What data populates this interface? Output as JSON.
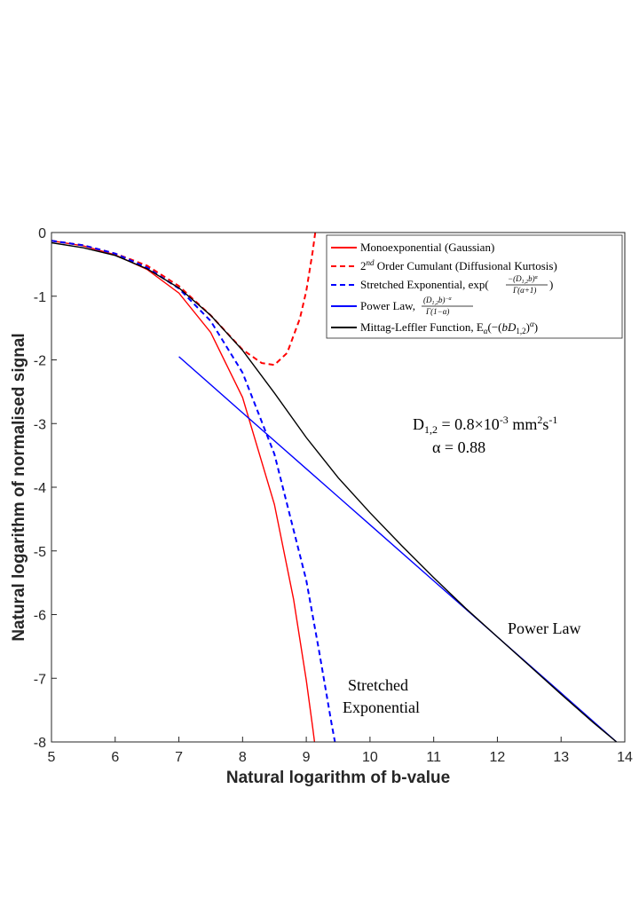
{
  "chart_data": {
    "type": "line",
    "xlabel": "Natural logarithm of b-value",
    "ylabel": "Natural logarithm of normalised signal",
    "xlim": [
      5,
      14
    ],
    "ylim": [
      -8,
      0
    ],
    "xticks": [
      5,
      6,
      7,
      8,
      9,
      10,
      11,
      12,
      13,
      14
    ],
    "yticks": [
      0,
      -1,
      -2,
      -3,
      -4,
      -5,
      -6,
      -7,
      -8
    ],
    "grid": false,
    "legend_position": "top-right",
    "series": [
      {
        "name": "Monoexponential (Gaussian)",
        "color": "#ff0000",
        "style": "solid",
        "points": [
          [
            5,
            -0.13
          ],
          [
            5.5,
            -0.21
          ],
          [
            6,
            -0.35
          ],
          [
            6.5,
            -0.58
          ],
          [
            7,
            -0.95
          ],
          [
            7.5,
            -1.57
          ],
          [
            8,
            -2.59
          ],
          [
            8.5,
            -4.27
          ],
          [
            8.8,
            -5.76
          ],
          [
            9.0,
            -7.03
          ],
          [
            9.1,
            -7.77
          ],
          [
            9.13,
            -8.0
          ]
        ]
      },
      {
        "name": "2nd Order Cumulant (Diffusional Kurtosis)",
        "color": "#ff0000",
        "style": "dashed",
        "points": [
          [
            5,
            -0.13
          ],
          [
            5.5,
            -0.2
          ],
          [
            6,
            -0.33
          ],
          [
            6.5,
            -0.52
          ],
          [
            7,
            -0.84
          ],
          [
            7.5,
            -1.3
          ],
          [
            8,
            -1.84
          ],
          [
            8.3,
            -2.05
          ],
          [
            8.5,
            -2.08
          ],
          [
            8.7,
            -1.89
          ],
          [
            8.9,
            -1.35
          ],
          [
            9.0,
            -0.92
          ],
          [
            9.1,
            -0.3
          ],
          [
            9.14,
            0.0
          ]
        ]
      },
      {
        "name": "Stretched Exponential, exp(−(D1,2b)^α / Γ(α+1))",
        "color": "#0000ff",
        "style": "dashed",
        "points": [
          [
            5,
            -0.13
          ],
          [
            5.5,
            -0.2
          ],
          [
            6,
            -0.33
          ],
          [
            6.5,
            -0.55
          ],
          [
            7,
            -0.88
          ],
          [
            7.5,
            -1.39
          ],
          [
            8,
            -2.2
          ],
          [
            8.5,
            -3.48
          ],
          [
            9.0,
            -5.46
          ],
          [
            9.2,
            -6.57
          ],
          [
            9.4,
            -7.73
          ],
          [
            9.45,
            -8.0
          ]
        ]
      },
      {
        "name": "Power Law, (D1,2b)^−α / Γ(1−α)",
        "color": "#0000ff",
        "style": "solid",
        "points": [
          [
            7,
            -1.95
          ],
          [
            8,
            -2.83
          ],
          [
            9,
            -3.71
          ],
          [
            10,
            -4.59
          ],
          [
            11,
            -5.47
          ],
          [
            12,
            -6.35
          ],
          [
            13,
            -7.23
          ],
          [
            13.87,
            -8.0
          ]
        ]
      },
      {
        "name": "Mittag-Leffler Function, Eα(−(bD1,2)^α)",
        "color": "#000000",
        "style": "solid",
        "points": [
          [
            5,
            -0.16
          ],
          [
            5.5,
            -0.24
          ],
          [
            6,
            -0.36
          ],
          [
            6.5,
            -0.57
          ],
          [
            7,
            -0.87
          ],
          [
            7.5,
            -1.3
          ],
          [
            8,
            -1.85
          ],
          [
            8.5,
            -2.52
          ],
          [
            9,
            -3.22
          ],
          [
            9.5,
            -3.85
          ],
          [
            10,
            -4.4
          ],
          [
            10.5,
            -4.92
          ],
          [
            11,
            -5.42
          ],
          [
            11.5,
            -5.9
          ],
          [
            12,
            -6.35
          ],
          [
            12.5,
            -6.8
          ],
          [
            13,
            -7.25
          ],
          [
            13.5,
            -7.69
          ],
          [
            13.87,
            -8.0
          ]
        ]
      }
    ],
    "annotations": {
      "diffusion_label": "D",
      "diffusion_sub": "1,2",
      "diffusion_value": " = 0.8×10",
      "diffusion_exp": "-3",
      "diffusion_unit": " mm",
      "diffusion_unit_exp": "2",
      "diffusion_unit_s": "s",
      "diffusion_unit_s_exp": "-1",
      "alpha_text": "α = 0.88",
      "power_law_label": "Power Law",
      "stretched_label_1": "Stretched",
      "stretched_label_2": "Exponential"
    }
  }
}
